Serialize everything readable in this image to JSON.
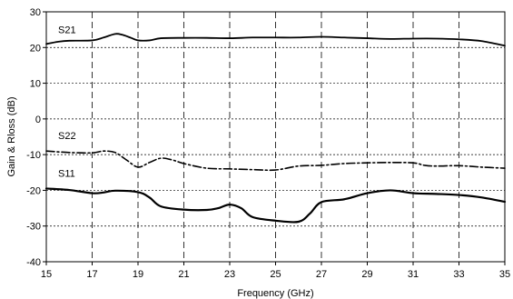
{
  "chart_data": {
    "type": "line",
    "title": "",
    "xlabel": "Frequency (GHz)",
    "ylabel": "Gain & Rloss  (dB)",
    "xlim": [
      15,
      35
    ],
    "ylim": [
      -40,
      30
    ],
    "x_ticks": [
      "15",
      "17",
      "19",
      "21",
      "23",
      "25",
      "27",
      "29",
      "31",
      "33",
      "35"
    ],
    "y_ticks": [
      "30",
      "20",
      "10",
      "0",
      "-10",
      "-20",
      "-30",
      "-40"
    ],
    "x_grid": "dashed vertical at each x tick",
    "y_grid": "dotted horizontal at each y tick",
    "legend": "none",
    "series": [
      {
        "name": "S21",
        "line_style": "solid",
        "color": "#000000",
        "points": [
          [
            15,
            21
          ],
          [
            15.5,
            21.6
          ],
          [
            16,
            21.9
          ],
          [
            17,
            22
          ],
          [
            17.5,
            22.8
          ],
          [
            18,
            23.8
          ],
          [
            18.3,
            23.6
          ],
          [
            18.7,
            22.7
          ],
          [
            19,
            22
          ],
          [
            19.5,
            22
          ],
          [
            20,
            22.6
          ],
          [
            21,
            22.7
          ],
          [
            22,
            22.7
          ],
          [
            23,
            22.6
          ],
          [
            24,
            22.8
          ],
          [
            25,
            22.8
          ],
          [
            26,
            22.8
          ],
          [
            27,
            23
          ],
          [
            28,
            22.8
          ],
          [
            29,
            22.6
          ],
          [
            30,
            22.4
          ],
          [
            31,
            22.5
          ],
          [
            32,
            22.5
          ],
          [
            33,
            22.3
          ],
          [
            34,
            21.8
          ],
          [
            35,
            20.5
          ]
        ]
      },
      {
        "name": "S22",
        "line_style": "dash-dot",
        "color": "#000000",
        "points": [
          [
            15,
            -9
          ],
          [
            16,
            -9.4
          ],
          [
            17,
            -9.5
          ],
          [
            17.5,
            -9
          ],
          [
            18,
            -9.4
          ],
          [
            18.5,
            -11.5
          ],
          [
            19,
            -13.5
          ],
          [
            19.5,
            -12.2
          ],
          [
            20,
            -11
          ],
          [
            20.5,
            -11.5
          ],
          [
            21,
            -12.5
          ],
          [
            22,
            -13.8
          ],
          [
            23,
            -14
          ],
          [
            24,
            -14.2
          ],
          [
            25,
            -14.3
          ],
          [
            26,
            -13.2
          ],
          [
            27,
            -13
          ],
          [
            28,
            -12.5
          ],
          [
            29,
            -12.3
          ],
          [
            30,
            -12.2
          ],
          [
            31,
            -12.3
          ],
          [
            31.5,
            -13
          ],
          [
            32,
            -13.2
          ],
          [
            33,
            -13.1
          ],
          [
            34,
            -13.5
          ],
          [
            35,
            -13.8
          ]
        ]
      },
      {
        "name": "S11",
        "line_style": "solid-thick",
        "color": "#000000",
        "points": [
          [
            15,
            -19.5
          ],
          [
            16,
            -19.9
          ],
          [
            17,
            -20.8
          ],
          [
            17.5,
            -20.6
          ],
          [
            18,
            -20.1
          ],
          [
            19,
            -20.5
          ],
          [
            19.5,
            -22
          ],
          [
            20,
            -24.5
          ],
          [
            21,
            -25.4
          ],
          [
            22,
            -25.5
          ],
          [
            22.5,
            -25
          ],
          [
            23,
            -24
          ],
          [
            23.5,
            -25
          ],
          [
            24,
            -27.5
          ],
          [
            25,
            -28.5
          ],
          [
            26,
            -28.8
          ],
          [
            26.5,
            -26.5
          ],
          [
            27,
            -23.3
          ],
          [
            28,
            -22.5
          ],
          [
            29,
            -20.8
          ],
          [
            30,
            -20
          ],
          [
            31,
            -20.8
          ],
          [
            32,
            -21
          ],
          [
            33,
            -21.3
          ],
          [
            34,
            -22
          ],
          [
            35,
            -23.2
          ]
        ]
      }
    ]
  }
}
